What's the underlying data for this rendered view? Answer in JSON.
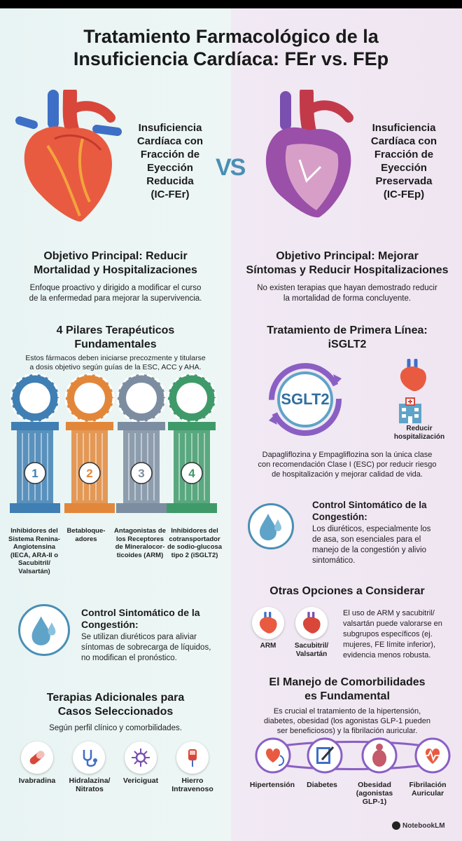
{
  "title_line1": "Tratamiento Farmacológico de la",
  "title_line2": "Insuficiencia Cardíaca: FEr vs. FEp",
  "vs_label": "VS",
  "left": {
    "heading_lines": [
      "Insuficiencia",
      "Cardíaca con",
      "Fracción de",
      "Eyección",
      "Reducida",
      "(IC-FEr)"
    ],
    "objective_title_line1": "Objetivo Principal: Reducir",
    "objective_title_line2": "Mortalidad y Hospitalizaciones",
    "objective_text_line1": "Enfoque proactivo y dirigido a modificar el curso",
    "objective_text_line2": "de la enfermedad para mejorar la supervivencia.",
    "pillars_title_line1": "4 Pilares Terapéuticos",
    "pillars_title_line2": "Fundamentales",
    "pillars_text_line1": "Estos fármacos deben iniciarse precozmente y titularse",
    "pillars_text_line2": "a dosis objetivo según guías de la ESC, ACC y AHA.",
    "pillars": [
      {
        "number": "1",
        "label": "Inhibidores del Sistema Renina-Angiotensina (IECA, ARA-II o Sacubitril/ Valsartán)",
        "color": "#3f7fb3"
      },
      {
        "number": "2",
        "label": "Betabloque-adores",
        "color": "#e2873a"
      },
      {
        "number": "3",
        "label": "Antagonistas de los Receptores de Mineralocor-ticoides (ARM)",
        "color": "#7d8da1"
      },
      {
        "number": "4",
        "label": "Inhibidores del cotransportador de sodio-glucosa tipo 2 (iSGLT2)",
        "color": "#3f9a6a"
      }
    ],
    "congestion_title_line1": "Control Sintomático de la",
    "congestion_title_line2": "Congestión:",
    "congestion_text_line1": "Se utilizan diuréticos para aliviar",
    "congestion_text_line2": "síntomas de sobrecarga de líquidos,",
    "congestion_text_line3": "no modifican el pronóstico.",
    "additional_title_line1": "Terapias Adicionales para",
    "additional_title_line2": "Casos Seleccionados",
    "additional_text": "Según perfil clínico y comorbilidades.",
    "additional_items": [
      {
        "label": "Ivabradina",
        "icon": "pill-icon"
      },
      {
        "label": "Hidralazina/ Nitratos",
        "icon": "stethoscope-icon"
      },
      {
        "label": "Vericiguat",
        "icon": "molecule-icon"
      },
      {
        "label": "Hierro Intravenoso",
        "icon": "iv-bag-icon"
      }
    ]
  },
  "right": {
    "heading_lines": [
      "Insuficiencia",
      "Cardíaca con",
      "Fracción de",
      "Eyección",
      "Preservada",
      "(IC-FEp)"
    ],
    "objective_title_line1": "Objetivo Principal: Mejorar",
    "objective_title_line2": "Síntomas y Reducir Hospitalizaciones",
    "objective_text_line1": "No existen terapias que hayan demostrado reducir",
    "objective_text_line2": "la mortalidad de forma concluyente.",
    "first_line_title_line1": "Tratamiento de Primera Línea:",
    "first_line_title_line2": "iSGLT2",
    "sglt2_label": "SGLT2",
    "reduce_label_line1": "Reducir",
    "reduce_label_line2": "hospitalización",
    "first_line_text_line1": "Dapagliflozina y Empagliflozina son la única clase",
    "first_line_text_line2": "con recomendación Clase I (ESC) por reducir riesgo",
    "first_line_text_line3": "de hospitalización y mejorar calidad de vida.",
    "congestion_title_line1": "Control Sintomático de la",
    "congestion_title_line2": "Congestión:",
    "congestion_text_line1": "Los diuréticos, especialmente los",
    "congestion_text_line2": "de asa, son esenciales para el",
    "congestion_text_line3": "manejo de la congestión y alivio",
    "congestion_text_line4": "sintomático.",
    "other_title": "Otras Opciones a Considerar",
    "other_items": [
      {
        "label": "ARM"
      },
      {
        "label": "Sacubitril/ Valsartán"
      }
    ],
    "other_text_line1": "El uso de ARM y sacubitril/",
    "other_text_line2": "valsartán puede valorarse en",
    "other_text_line3": "subgrupos específicos (ej.",
    "other_text_line4": "mujeres, FE límite inferior),",
    "other_text_line5": "evidencia menos robusta.",
    "comorb_title_line1": "El Manejo de Comorbilidades",
    "comorb_title_line2": "es Fundamental",
    "comorb_text_line1": "Es crucial el tratamiento de la hipertensión,",
    "comorb_text_line2": "diabetes, obesidad (los agonistas GLP-1 pueden",
    "comorb_text_line3": "ser beneficiosos) y la fibrilación auricular.",
    "comorb_items": [
      {
        "label": "Hipertensión",
        "icon": "blood-pressure-icon"
      },
      {
        "label": "Diabetes",
        "icon": "notebook-pen-icon"
      },
      {
        "label": "Obesidad (agonistas GLP-1)",
        "icon": "person-icon"
      },
      {
        "label": "Fibrilación Auricular",
        "icon": "heart-ecg-icon"
      }
    ]
  },
  "brand": "NotebookLM",
  "colors": {
    "left_bg": "#e8f4f3",
    "right_bg": "#f1e9f3",
    "accent_blue": "#4a8fb3",
    "accent_purple": "#7a4fb0"
  }
}
